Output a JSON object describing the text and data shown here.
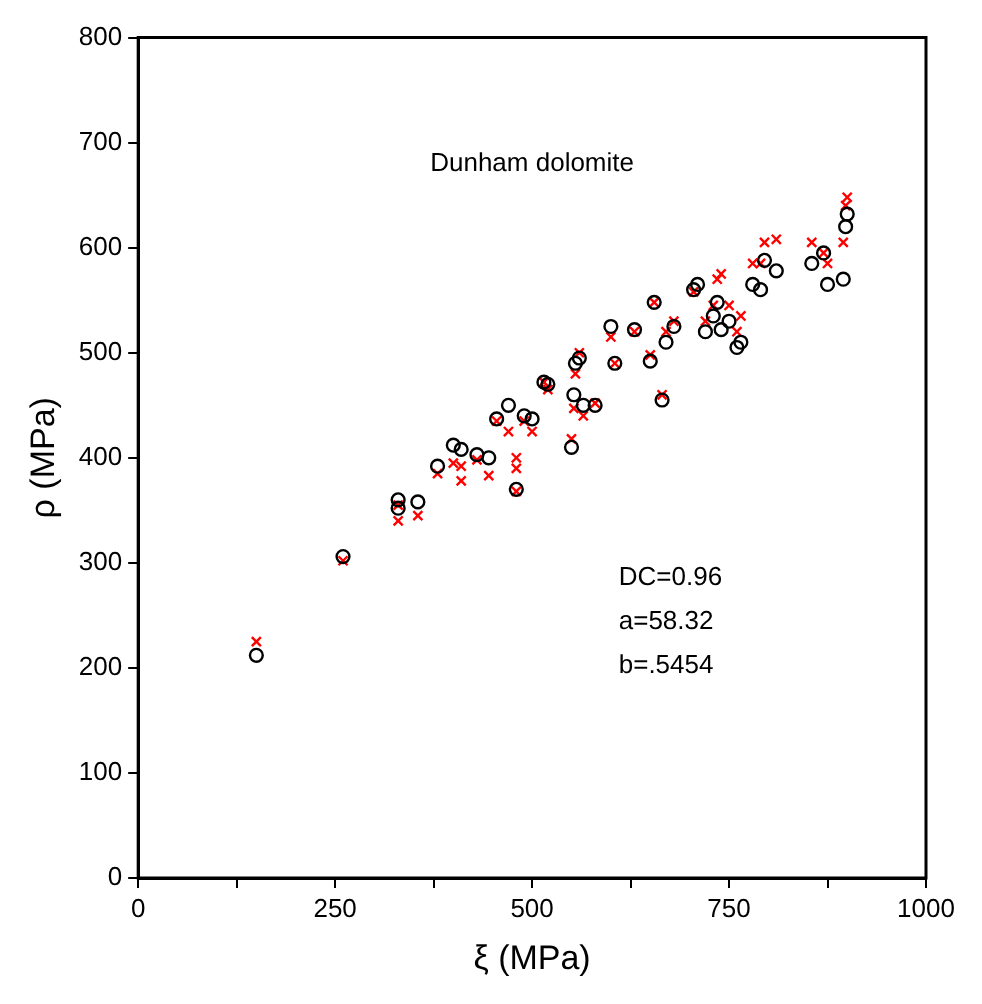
{
  "chart_data": {
    "type": "scatter",
    "xlabel": "ξ (MPa)",
    "ylabel": "ρ (MPa)",
    "annotations": [
      "Dunham dolomite",
      "DC=0.96",
      "a=58.32",
      "b=.5454"
    ],
    "xlim": [
      0,
      1000
    ],
    "xticks": [
      0,
      {
        "value": 125,
        "label": null
      },
      250,
      {
        "value": 375,
        "label": null
      },
      500,
      {
        "value": 625,
        "label": null
      },
      750,
      {
        "value": 875,
        "label": null
      },
      1000
    ],
    "ylim": [
      0,
      800
    ],
    "yticks": [
      0,
      100,
      200,
      300,
      400,
      500,
      600,
      700,
      800
    ],
    "grid": false,
    "legend": false,
    "series": [
      {
        "color": "#000000",
        "marker": "circle",
        "x": [
          150,
          260,
          330,
          330,
          355,
          380,
          400,
          410,
          430,
          445,
          455,
          470,
          480,
          490,
          500,
          515,
          520,
          550,
          553,
          555,
          560,
          565,
          580,
          600,
          605,
          630,
          650,
          655,
          665,
          670,
          680,
          705,
          710,
          720,
          730,
          735,
          740,
          750,
          760,
          765,
          780,
          790,
          795,
          810,
          855,
          870,
          875,
          895,
          898,
          900
        ],
        "values": [
          212,
          306,
          360,
          352,
          358,
          392,
          412,
          408,
          403,
          400,
          437,
          450,
          370,
          440,
          437,
          472,
          470,
          410,
          460,
          490,
          495,
          450,
          450,
          525,
          490,
          522,
          492,
          548,
          455,
          510,
          525,
          560,
          565,
          520,
          535,
          548,
          522,
          530,
          505,
          510,
          565,
          560,
          588,
          578,
          585,
          595,
          565,
          570,
          620,
          632
        ]
      },
      {
        "color": "#ff0000",
        "marker": "cross",
        "x": [
          150,
          260,
          330,
          330,
          355,
          380,
          400,
          410,
          410,
          430,
          445,
          455,
          470,
          480,
          480,
          480,
          490,
          500,
          515,
          520,
          550,
          553,
          555,
          560,
          565,
          580,
          600,
          605,
          630,
          650,
          655,
          665,
          670,
          680,
          705,
          710,
          720,
          730,
          735,
          740,
          750,
          760,
          765,
          780,
          790,
          795,
          810,
          855,
          870,
          875,
          895,
          898,
          900
        ],
        "values": [
          225,
          302,
          340,
          355,
          345,
          385,
          395,
          378,
          392,
          398,
          383,
          435,
          425,
          368,
          390,
          400,
          435,
          425,
          472,
          465,
          418,
          447,
          480,
          500,
          440,
          452,
          515,
          490,
          520,
          498,
          548,
          460,
          520,
          530,
          558,
          null,
          530,
          545,
          570,
          575,
          545,
          520,
          535,
          585,
          585,
          605,
          608,
          605,
          595,
          585,
          605,
          640,
          648
        ]
      }
    ]
  }
}
